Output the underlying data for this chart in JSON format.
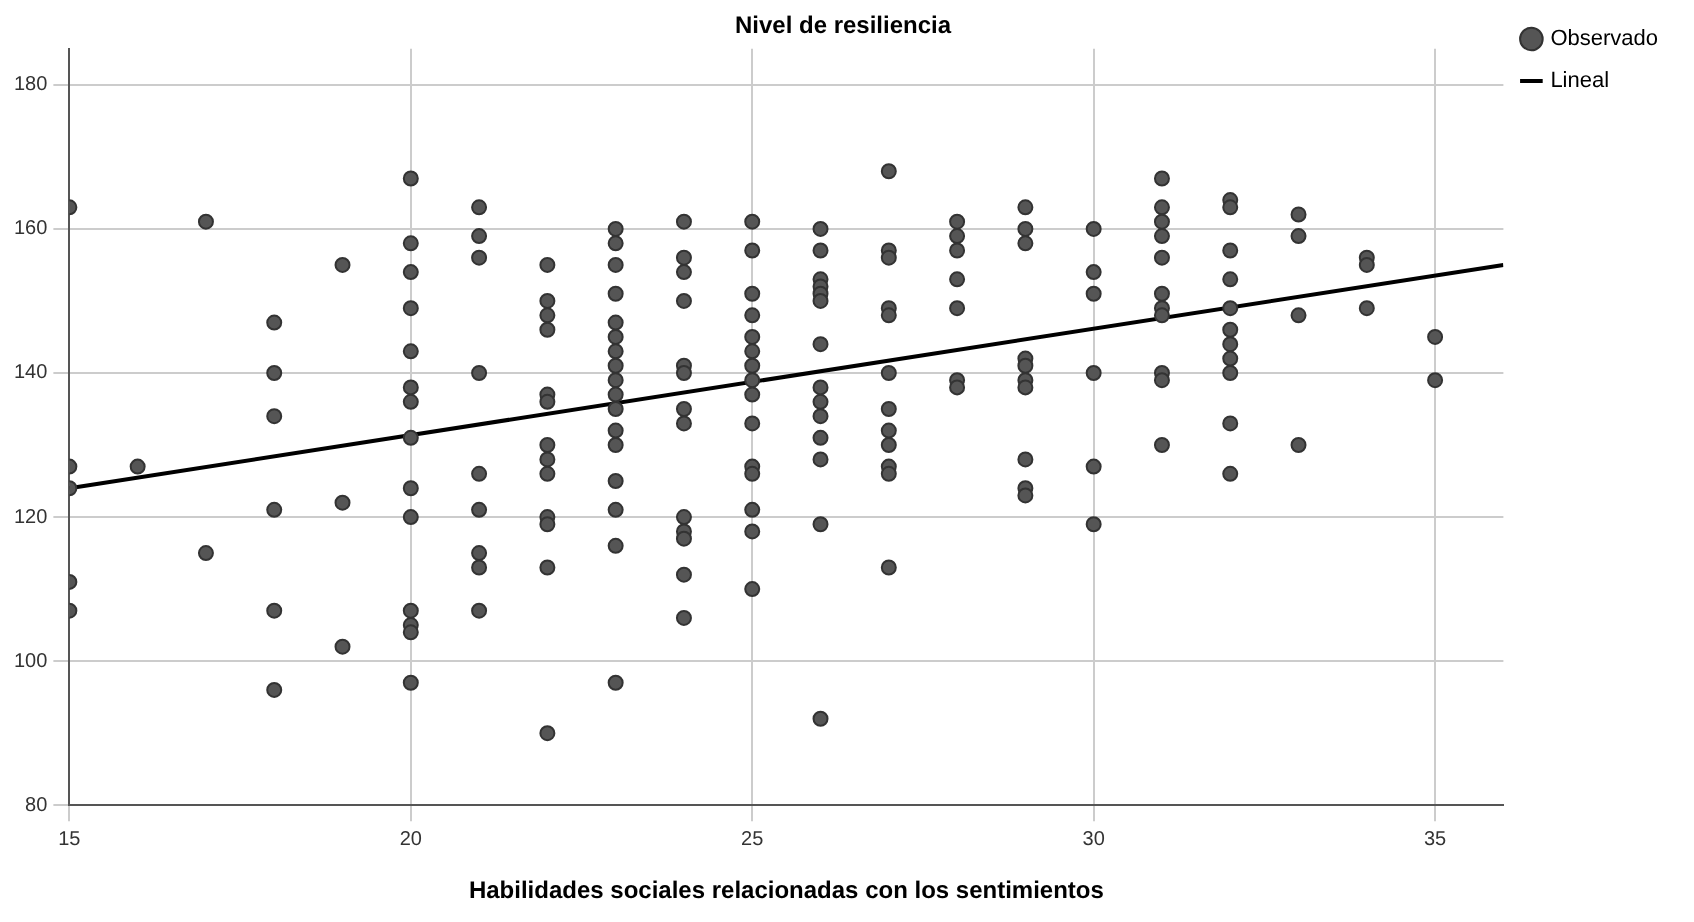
{
  "chart_data": {
    "type": "scatter",
    "title": "Nivel de resiliencia",
    "xlabel": "Habilidades sociales relacionadas con los sentimientos",
    "xlim": [
      15,
      36
    ],
    "xticks": [
      15,
      20,
      25,
      30,
      35
    ],
    "ylim": [
      80,
      185
    ],
    "yticks": [
      80,
      100,
      120,
      140,
      160,
      180
    ],
    "grid": true,
    "legend": "top right",
    "series": [
      {
        "name": "Observado",
        "marker": "circle",
        "color": "#555555",
        "x": [
          15,
          15,
          15,
          15,
          15,
          16,
          17,
          17,
          18,
          18,
          18,
          18,
          18,
          18,
          19,
          19,
          19,
          20,
          20,
          20,
          20,
          20,
          20,
          20,
          20,
          20,
          20,
          20,
          20,
          20,
          20,
          21,
          21,
          21,
          21,
          21,
          21,
          21,
          21,
          21,
          22,
          22,
          22,
          22,
          22,
          22,
          22,
          22,
          22,
          22,
          22,
          22,
          22,
          23,
          23,
          23,
          23,
          23,
          23,
          23,
          23,
          23,
          23,
          23,
          23,
          23,
          23,
          23,
          23,
          23,
          24,
          24,
          24,
          24,
          24,
          24,
          24,
          24,
          24,
          24,
          24,
          24,
          24,
          25,
          25,
          25,
          25,
          25,
          25,
          25,
          25,
          25,
          25,
          25,
          25,
          25,
          25,
          25,
          26,
          26,
          26,
          26,
          26,
          26,
          26,
          26,
          26,
          26,
          26,
          26,
          26,
          26,
          27,
          27,
          27,
          27,
          27,
          27,
          27,
          27,
          27,
          27,
          27,
          27,
          28,
          28,
          28,
          28,
          28,
          28,
          28,
          29,
          29,
          29,
          29,
          29,
          29,
          29,
          29,
          29,
          29,
          30,
          30,
          30,
          30,
          30,
          30,
          31,
          31,
          31,
          31,
          31,
          31,
          31,
          31,
          31,
          31,
          31,
          32,
          32,
          32,
          32,
          32,
          32,
          32,
          32,
          32,
          32,
          32,
          33,
          33,
          33,
          33,
          34,
          34,
          34,
          35,
          35
        ],
        "values": [
          163,
          127,
          124,
          111,
          107,
          127,
          161,
          115,
          147,
          140,
          134,
          121,
          107,
          96,
          155,
          122,
          102,
          167,
          158,
          154,
          149,
          143,
          138,
          136,
          131,
          124,
          120,
          107,
          105,
          104,
          97,
          163,
          159,
          156,
          140,
          126,
          121,
          115,
          113,
          107,
          155,
          150,
          148,
          146,
          137,
          136,
          130,
          128,
          126,
          120,
          119,
          113,
          90,
          160,
          158,
          155,
          151,
          147,
          145,
          143,
          141,
          139,
          137,
          135,
          132,
          130,
          125,
          121,
          116,
          97,
          161,
          156,
          154,
          150,
          141,
          140,
          135,
          133,
          120,
          118,
          117,
          112,
          106,
          161,
          157,
          151,
          148,
          145,
          143,
          141,
          139,
          137,
          133,
          127,
          126,
          121,
          118,
          110,
          160,
          157,
          153,
          152,
          151,
          150,
          144,
          138,
          136,
          134,
          131,
          128,
          119,
          92,
          168,
          157,
          156,
          149,
          148,
          140,
          135,
          132,
          130,
          127,
          126,
          113,
          161,
          159,
          157,
          153,
          149,
          139,
          138,
          163,
          160,
          158,
          142,
          141,
          139,
          138,
          128,
          124,
          123,
          160,
          154,
          151,
          140,
          127,
          119,
          167,
          163,
          161,
          159,
          156,
          151,
          149,
          148,
          140,
          139,
          130,
          164,
          163,
          157,
          153,
          149,
          146,
          144,
          142,
          140,
          133,
          126,
          162,
          159,
          148,
          130,
          156,
          155,
          149,
          145,
          139
        ]
      },
      {
        "name": "Lineal",
        "type": "line",
        "color": "#000000",
        "line_style": "solid",
        "marker": "none",
        "x": [
          15,
          36
        ],
        "values": [
          124,
          155
        ]
      }
    ]
  }
}
